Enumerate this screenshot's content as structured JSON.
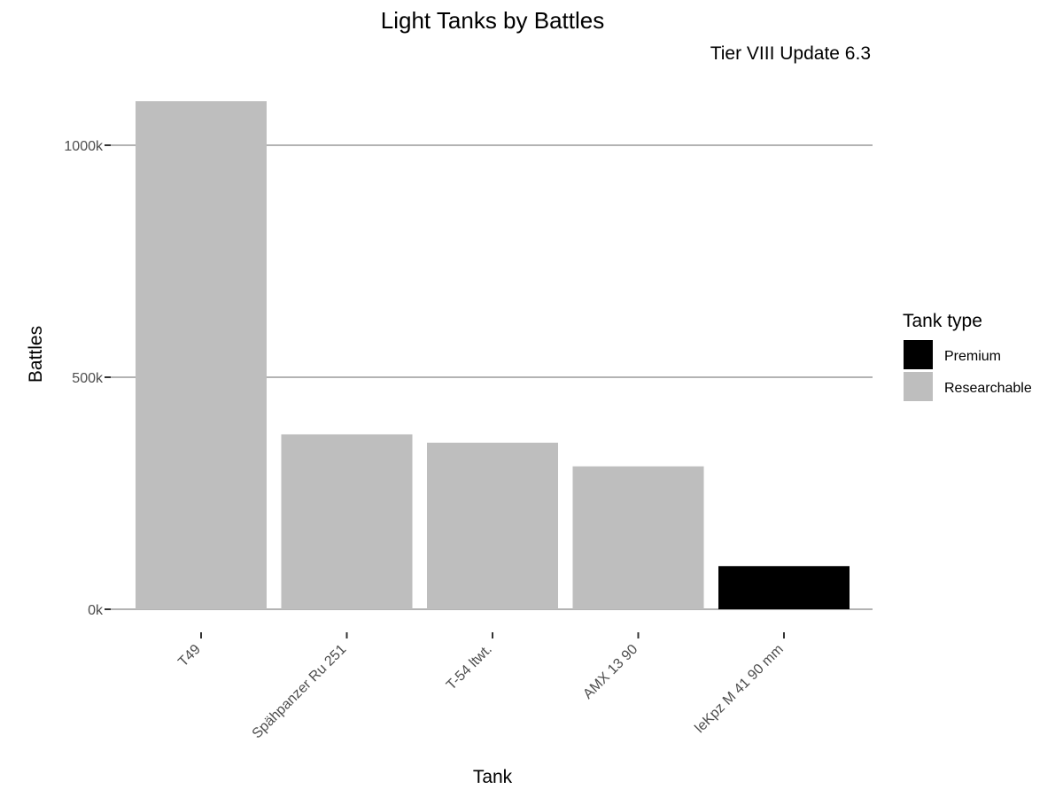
{
  "chart_data": {
    "type": "bar",
    "title": "Light Tanks by Battles",
    "subtitle": "Tier VIII Update 6.3",
    "xlabel": "Tank",
    "ylabel": "Battles",
    "categories": [
      "T49",
      "Spähpanzer Ru 251",
      "T-54 ltwt.",
      "AMX 13 90",
      "leKpz M 41 90 mm"
    ],
    "values": [
      1095000,
      377000,
      359000,
      308000,
      93000
    ],
    "types": [
      "Researchable",
      "Researchable",
      "Researchable",
      "Researchable",
      "Premium"
    ],
    "ylim": [
      0,
      1100000
    ],
    "yticks": [
      0,
      500000,
      1000000
    ],
    "ytick_labels": [
      "0k",
      "500k",
      "1000k"
    ],
    "grid": true,
    "legend": {
      "title": "Tank type",
      "position": "right",
      "entries": [
        {
          "label": "Premium",
          "color": "#000000"
        },
        {
          "label": "Researchable",
          "color": "#bebebe"
        }
      ]
    }
  }
}
